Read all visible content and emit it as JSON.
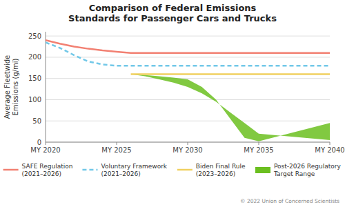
{
  "chart_data": {
    "type": "line",
    "title": "Comparison of Federal Emissions\nStandards for Passenger Cars and Trucks",
    "y_label": "Average Fleetwide\nEmissions (g/mi)",
    "xlim": [
      2020,
      2040
    ],
    "ylim": [
      0,
      260
    ],
    "xticks": [
      {
        "value": 2020,
        "label": "MY 2020"
      },
      {
        "value": 2025,
        "label": "MY 2025"
      },
      {
        "value": 2030,
        "label": "MY 2030"
      },
      {
        "value": 2035,
        "label": "MY 2035"
      },
      {
        "value": 2040,
        "label": "MY 2040"
      }
    ],
    "yticks": [
      0,
      50,
      100,
      150,
      200,
      250
    ],
    "grid": true,
    "legend": "bottom",
    "series": [
      {
        "name": "SAFE Regulation\n(2021–2026)",
        "color": "#F28072",
        "line_style": "solid",
        "x": [
          2020,
          2021,
          2022,
          2023,
          2024,
          2025,
          2026,
          2040
        ],
        "values": [
          240,
          232,
          225,
          220,
          216,
          213,
          210,
          210
        ]
      },
      {
        "name": "Voluntary Framework\n(2021–2026)",
        "color": "#72C8E8",
        "line_style": "dashed",
        "x": [
          2020,
          2021,
          2022,
          2023,
          2024,
          2025,
          2026,
          2040
        ],
        "values": [
          235,
          222,
          205,
          190,
          183,
          180,
          180,
          180
        ]
      },
      {
        "name": "Biden Final Rule\n(2023–2026)",
        "color": "#F0D060",
        "line_style": "solid",
        "x": [
          2026,
          2040
        ],
        "values": [
          160,
          160
        ]
      },
      {
        "name": "Post-2026 Regulatory\nTarget Range",
        "type": "area",
        "color": "#6BBF20",
        "x": [
          2026,
          2027,
          2028,
          2029,
          2030,
          2031,
          2032,
          2033,
          2034,
          2035,
          2040
        ],
        "values": [
          160,
          155,
          148,
          140,
          130,
          115,
          95,
          70,
          45,
          20,
          5
        ],
        "lower": [
          160,
          158,
          155,
          152,
          148,
          130,
          100,
          55,
          10,
          2,
          45
        ]
      }
    ],
    "annotations": [
      "© 2022 Union of Concerned Scientists"
    ]
  }
}
